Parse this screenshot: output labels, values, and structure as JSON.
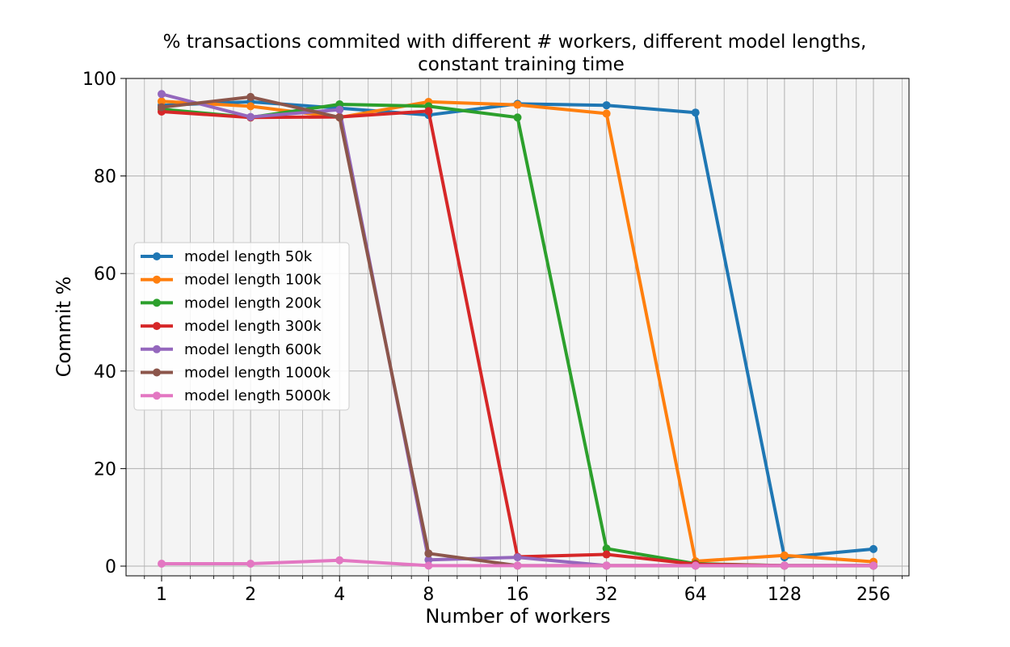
{
  "chart_data": {
    "type": "line",
    "title_line1": "% transactions commited with different # workers, different model lengths,",
    "title_line2": "constant training time",
    "xlabel": "Number of workers",
    "ylabel": "Commit %",
    "x_scale": "log2",
    "x": [
      1,
      2,
      4,
      8,
      16,
      32,
      64,
      128,
      256
    ],
    "x_tick_labels": [
      "1",
      "2",
      "4",
      "8",
      "16",
      "32",
      "64",
      "128",
      "256"
    ],
    "ylim": [
      0,
      100
    ],
    "y_ticks": [
      0,
      20,
      40,
      60,
      80,
      100
    ],
    "y_tick_labels": [
      "0",
      "20",
      "40",
      "60",
      "80",
      "100"
    ],
    "grid": true,
    "legend_position": "center-left",
    "series": [
      {
        "name": "model length 50k",
        "color": "#1f77b4",
        "values": [
          94.5,
          95.2,
          93.9,
          92.5,
          94.8,
          94.5,
          93.0,
          1.8,
          3.5
        ]
      },
      {
        "name": "model length 100k",
        "color": "#ff7f0e",
        "values": [
          95.3,
          94.3,
          92.0,
          95.2,
          94.6,
          92.8,
          1.0,
          2.2,
          0.9
        ]
      },
      {
        "name": "model length 200k",
        "color": "#2ca02c",
        "values": [
          93.7,
          92.0,
          94.7,
          94.3,
          92.0,
          3.6,
          0.5,
          0.1,
          0.1
        ]
      },
      {
        "name": "model length 300k",
        "color": "#d62728",
        "values": [
          93.2,
          92.0,
          92.1,
          93.3,
          1.9,
          2.4,
          0.4,
          0.1,
          0.1
        ]
      },
      {
        "name": "model length 600k",
        "color": "#9467bd",
        "values": [
          96.8,
          92.1,
          93.6,
          1.3,
          1.8,
          0.1,
          0.1,
          0.1,
          0.1
        ]
      },
      {
        "name": "model length 1000k",
        "color": "#8c564b",
        "values": [
          94.1,
          96.2,
          92.0,
          2.6,
          0.1,
          0.1,
          0.1,
          0.1,
          0.1
        ]
      },
      {
        "name": "model length 5000k",
        "color": "#e377c2",
        "values": [
          0.5,
          0.5,
          1.2,
          0.1,
          0.1,
          0.1,
          0.1,
          0.1,
          0.1
        ]
      }
    ]
  }
}
